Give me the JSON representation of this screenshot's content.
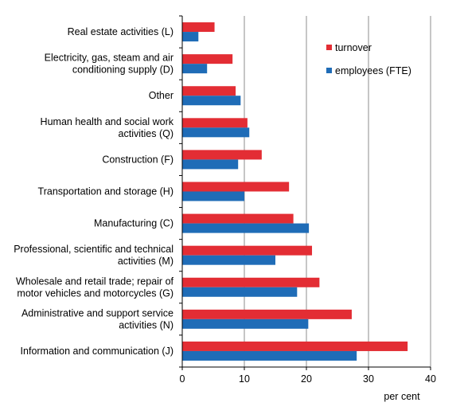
{
  "chart_data": {
    "type": "bar",
    "orientation": "horizontal",
    "categories": [
      [
        "Real estate activities (L)"
      ],
      [
        "Electricity, gas, steam and air",
        "conditioning supply (D)"
      ],
      [
        "Other"
      ],
      [
        "Human health and social work",
        "activities (Q)"
      ],
      [
        "Construction (F)"
      ],
      [
        "Transportation and storage (H)"
      ],
      [
        "Manufacturing (C)"
      ],
      [
        "Professional, scientific and technical",
        "activities (M)"
      ],
      [
        "Wholesale and retail trade; repair of",
        "motor vehicles and motorcycles (G)"
      ],
      [
        "Administrative and support service",
        "activities (N)"
      ],
      [
        "Information and communication (J)"
      ]
    ],
    "series": [
      {
        "name": "turnover",
        "color": "#e32d34",
        "values": [
          5.2,
          8.1,
          8.6,
          10.5,
          12.8,
          17.2,
          17.9,
          20.9,
          22.1,
          27.3,
          36.3
        ]
      },
      {
        "name": "employees (FTE)",
        "color": "#1f6cb7",
        "values": [
          2.6,
          4.0,
          9.4,
          10.8,
          9.0,
          10.0,
          20.4,
          15.0,
          18.5,
          20.3,
          28.1
        ]
      }
    ],
    "xlim": [
      0,
      40
    ],
    "xticks": [
      "0",
      "10",
      "20",
      "30",
      "40"
    ],
    "xlabel": "per cent",
    "grid": "vertical",
    "legend_position": "top-right"
  }
}
